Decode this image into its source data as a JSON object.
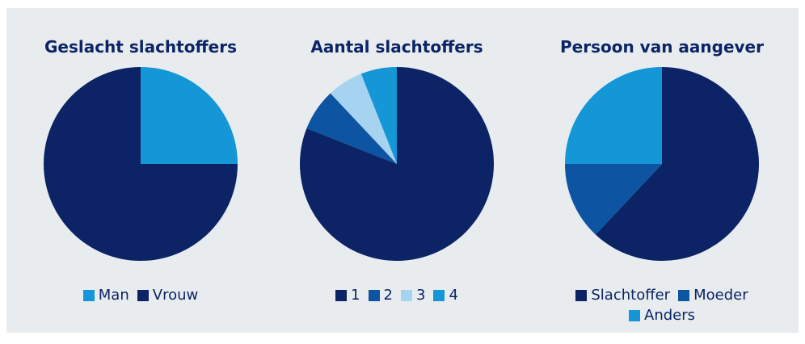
{
  "chart_data": [
    {
      "type": "pie",
      "title": "Geslacht slachtoffers",
      "categories": [
        "Man",
        "Vrouw"
      ],
      "values": [
        25,
        75
      ],
      "colors": [
        "#1496d7",
        "#0c2466"
      ]
    },
    {
      "type": "pie",
      "title": "Aantal slachtoffers",
      "categories": [
        "1",
        "2",
        "3",
        "4"
      ],
      "values": [
        81,
        7,
        6,
        6
      ],
      "colors": [
        "#0c2466",
        "#0d54a3",
        "#a6d3ef",
        "#1496d7"
      ]
    },
    {
      "type": "pie",
      "title": "Persoon van aangever",
      "categories": [
        "Slachtoffer",
        "Moeder",
        "Anders"
      ],
      "values": [
        62,
        13,
        25
      ],
      "colors": [
        "#0c2466",
        "#0d54a3",
        "#1496d7"
      ]
    }
  ]
}
